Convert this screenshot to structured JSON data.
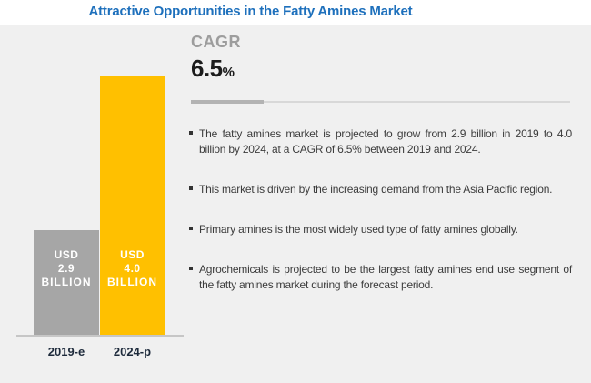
{
  "title": "Attractive Opportunities in the Fatty Amines Market",
  "cagr": {
    "label": "CAGR",
    "value": "6.5",
    "unit": "%"
  },
  "chart_data": {
    "type": "bar",
    "title": "Attractive Opportunities in the Fatty Amines Market",
    "categories": [
      "2019-e",
      "2024-p"
    ],
    "values": [
      2.9,
      4.0
    ],
    "unit": "USD Billion",
    "bar_value_labels": [
      "USD 2.9 BILLION",
      "USD 4.0 BILLION"
    ],
    "bar_colors": [
      "#A6A6A6",
      "#FFC000"
    ],
    "cagr": "6.5%",
    "legend_position": "none",
    "grid": false
  },
  "bars": [
    {
      "lines": [
        "USD",
        "2.9",
        "BILLION"
      ],
      "axis_label": "2019-e",
      "color": "#A6A6A6"
    },
    {
      "lines": [
        "USD",
        "4.0",
        "BILLION"
      ],
      "axis_label": "2024-p",
      "color": "#FFC000"
    }
  ],
  "bullets": [
    "The fatty amines market is projected to grow from 2.9 billion in 2019 to 4.0 billion by 2024, at a CAGR of 6.5% between 2019 and 2024.",
    "This market is driven by the increasing demand from the Asia Pacific region.",
    "Primary amines is the most widely used type of fatty amines globally.",
    "Agrochemicals is projected to be the largest fatty amines end use segment of the fatty amines market during the forecast period."
  ],
  "colors": {
    "title_blue": "#1E70BC",
    "content_background": "#F0F0F0",
    "bar_gray": "#A6A6A6",
    "bar_yellow": "#FFC000",
    "cagr_label_gray": "#9D9D9D",
    "cagr_value_dark": "#1C1C1C",
    "divider_dark": "#B3B3B3",
    "divider_light": "#D8D8D8",
    "axis_line": "#C6C6C6",
    "axis_label_navy": "#1E2B3C",
    "bullet_text": "#3C3C3C",
    "bar_text_white": "#FFFFFF"
  }
}
